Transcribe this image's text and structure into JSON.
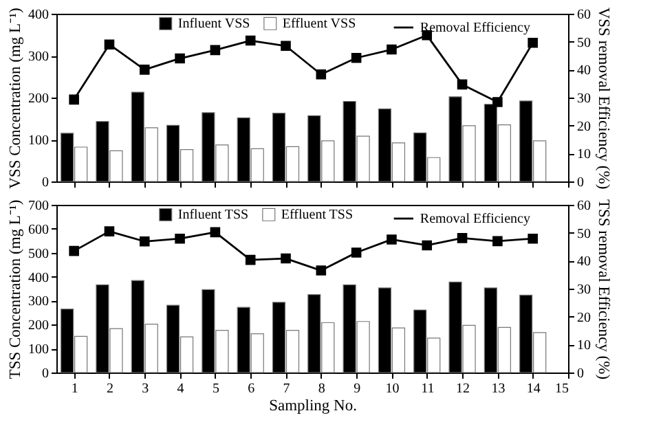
{
  "chart_data": [
    {
      "type": "bar",
      "ylabel": "VSS Concentration (mg L⁻¹)",
      "y2label": "VSS removal Efficiency (%)",
      "x": [
        1,
        2,
        3,
        4,
        5,
        6,
        7,
        8,
        9,
        10,
        11,
        12,
        13,
        14
      ],
      "xlim": [
        0.5,
        15
      ],
      "xticks": [
        1,
        2,
        3,
        4,
        5,
        6,
        7,
        8,
        9,
        10,
        11,
        12,
        13,
        14,
        15
      ],
      "ylim": [
        0,
        400
      ],
      "yticks": [
        0,
        100,
        200,
        300,
        400
      ],
      "y2lim": [
        0,
        60
      ],
      "y2ticks": [
        0,
        10,
        20,
        30,
        40,
        50,
        60
      ],
      "tick_labels": "y",
      "legend": "top",
      "marker": "square",
      "series": [
        {
          "name": "Influent VSS",
          "color": "#000000",
          "values": [
            115,
            143,
            213,
            134,
            164,
            152,
            163,
            157,
            191,
            173,
            116,
            202,
            184,
            192
          ]
        },
        {
          "name": "Effluent VSS",
          "color": "#ffffff",
          "values": [
            82,
            73,
            128,
            76,
            87,
            78,
            83,
            97,
            108,
            92,
            57,
            133,
            135,
            97
          ]
        },
        {
          "name": "Removal Efficiency",
          "type": "line",
          "axis": "y2",
          "color": "#000000",
          "values": [
            29.3,
            49,
            40,
            44,
            47,
            50.4,
            48.5,
            38.3,
            44.2,
            47.2,
            52.3,
            34.7,
            28.4,
            49.6
          ]
        }
      ]
    },
    {
      "type": "bar",
      "xlabel": "Sampling No.",
      "ylabel": "TSS Concentration (mg L⁻¹)",
      "y2label": "TSS removal Efficiency (%)",
      "x": [
        1,
        2,
        3,
        4,
        5,
        6,
        7,
        8,
        9,
        10,
        11,
        12,
        13,
        14
      ],
      "xlim": [
        0.5,
        15
      ],
      "xticks": [
        1,
        2,
        3,
        4,
        5,
        6,
        7,
        8,
        9,
        10,
        11,
        12,
        13,
        14,
        15
      ],
      "ylim": [
        0,
        700
      ],
      "yticks": [
        0,
        100,
        200,
        300,
        400,
        500,
        600,
        700
      ],
      "y2lim": [
        0,
        60
      ],
      "y2ticks": [
        0,
        10,
        20,
        30,
        40,
        50,
        60
      ],
      "legend": "top",
      "marker": "square",
      "series": [
        {
          "name": "Influent TSS",
          "color": "#000000",
          "values": [
            265,
            366,
            384,
            281,
            346,
            272,
            293,
            325,
            366,
            353,
            261,
            378,
            353,
            323
          ]
        },
        {
          "name": "Effluent TSS",
          "color": "#ffffff",
          "values": [
            151,
            183,
            202,
            149,
            176,
            162,
            176,
            208,
            213,
            186,
            144,
            197,
            188,
            167
          ]
        },
        {
          "name": "Removal Efficiency",
          "type": "line",
          "axis": "y2",
          "color": "#000000",
          "values": [
            43.5,
            50.5,
            46.9,
            47.9,
            50.2,
            40.3,
            40.8,
            36.5,
            42.9,
            47.6,
            45.5,
            48.1,
            47,
            47.9
          ]
        }
      ]
    }
  ]
}
